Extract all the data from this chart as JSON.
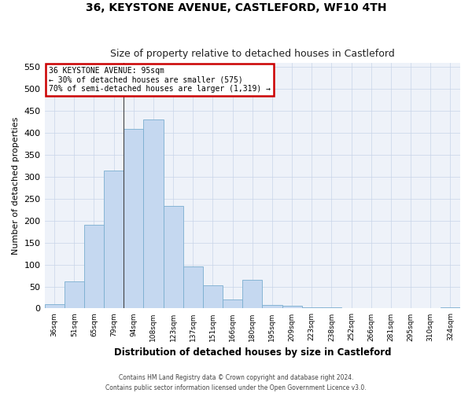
{
  "title": "36, KEYSTONE AVENUE, CASTLEFORD, WF10 4TH",
  "subtitle": "Size of property relative to detached houses in Castleford",
  "xlabel": "Distribution of detached houses by size in Castleford",
  "ylabel": "Number of detached properties",
  "categories": [
    "36sqm",
    "51sqm",
    "65sqm",
    "79sqm",
    "94sqm",
    "108sqm",
    "123sqm",
    "137sqm",
    "151sqm",
    "166sqm",
    "180sqm",
    "195sqm",
    "209sqm",
    "223sqm",
    "238sqm",
    "252sqm",
    "266sqm",
    "281sqm",
    "295sqm",
    "310sqm",
    "324sqm"
  ],
  "values": [
    10,
    62,
    190,
    315,
    410,
    430,
    233,
    95,
    53,
    20,
    65,
    8,
    7,
    3,
    3,
    1,
    1,
    0,
    0,
    0,
    2
  ],
  "bar_color": "#c5d8f0",
  "bar_edge_color": "#7aaed0",
  "annotation_text_line1": "36 KEYSTONE AVENUE: 95sqm",
  "annotation_text_line2": "← 30% of detached houses are smaller (575)",
  "annotation_text_line3": "70% of semi-detached houses are larger (1,319) →",
  "annotation_box_color": "#ffffff",
  "annotation_box_edge_color": "#cc0000",
  "ylim": [
    0,
    560
  ],
  "yticks": [
    0,
    50,
    100,
    150,
    200,
    250,
    300,
    350,
    400,
    450,
    500,
    550
  ],
  "bg_color": "#eef2f9",
  "grid_color": "#c8d4e8",
  "footer_line1": "Contains HM Land Registry data © Crown copyright and database right 2024.",
  "footer_line2": "Contains public sector information licensed under the Open Government Licence v3.0."
}
